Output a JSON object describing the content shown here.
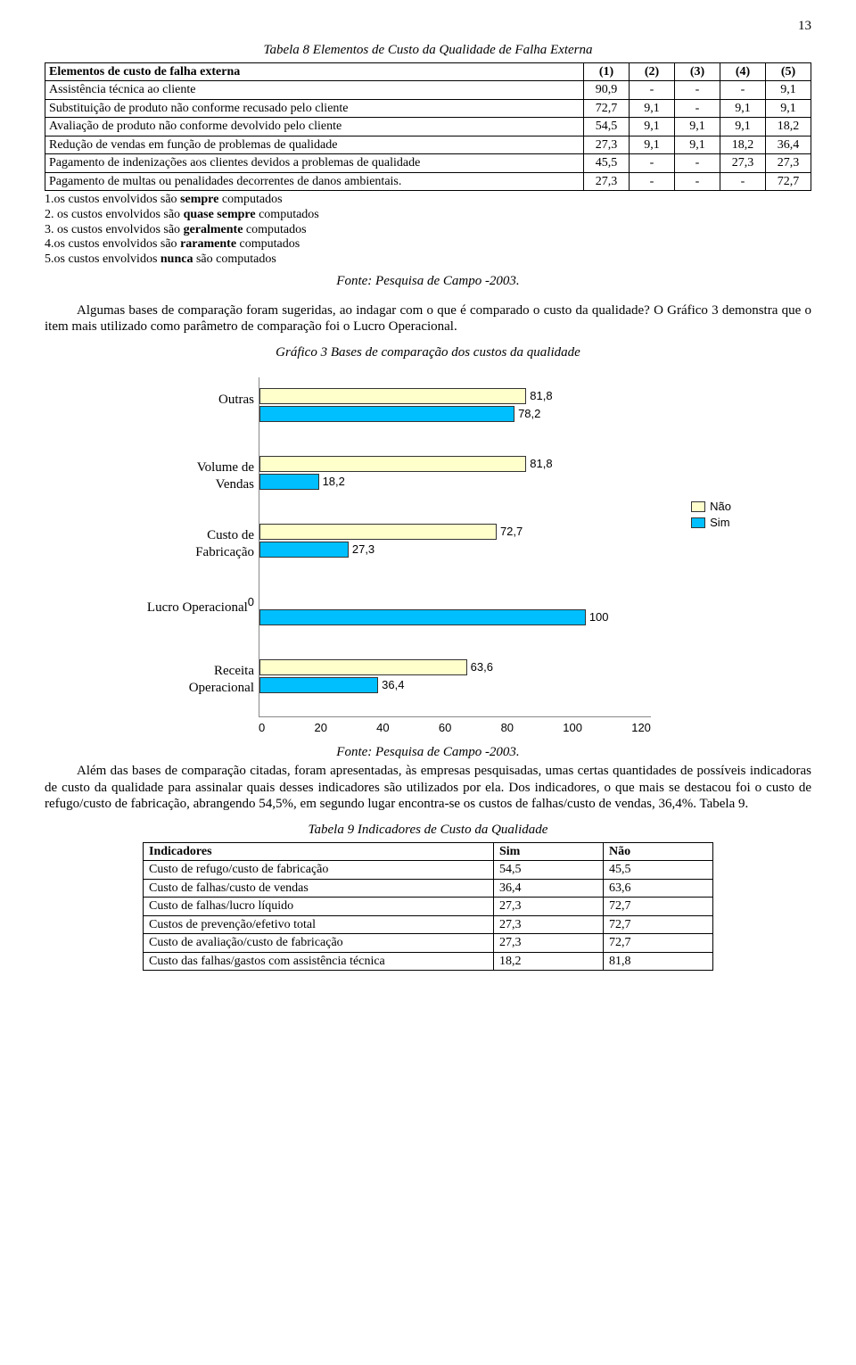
{
  "page_number": "13",
  "table8": {
    "title": "Tabela 8 Elementos de Custo da Qualidade de Falha Externa",
    "header": [
      "Elementos de custo de falha externa",
      "(1)",
      "(2)",
      "(3)",
      "(4)",
      "(5)"
    ],
    "rows": [
      [
        "Assistência técnica ao cliente",
        "90,9",
        "-",
        "-",
        "-",
        "9,1"
      ],
      [
        "Substituição de produto não  conforme recusado pelo cliente",
        "72,7",
        "9,1",
        "-",
        "9,1",
        "9,1"
      ],
      [
        "Avaliação de produto não conforme devolvido pelo cliente",
        "54,5",
        "9,1",
        "9,1",
        "9,1",
        "18,2"
      ],
      [
        "Redução de vendas em função de problemas de qualidade",
        "27,3",
        "9,1",
        "9,1",
        "18,2",
        "36,4"
      ],
      [
        "Pagamento de indenizações aos clientes devidos a problemas de qualidade",
        "45,5",
        "-",
        "-",
        "27,3",
        "27,3"
      ],
      [
        "Pagamento de multas ou penalidades decorrentes de danos ambientais.",
        "27,3",
        "-",
        "-",
        "-",
        "72,7"
      ]
    ],
    "legend": [
      "1.os custos envolvidos são <b>sempre</b> computados",
      "2. os custos envolvidos são <b>quase sempre</b> computados",
      "3. os custos envolvidos são <b>geralmente</b> computados",
      "4.os custos envolvidos são <b>raramente</b> computados",
      "5.os custos envolvidos <b>nunca</b> são computados"
    ],
    "fonte": "Fonte: Pesquisa de Campo -2003."
  },
  "body_para_1": "Algumas bases de comparação foram sugeridas, ao indagar com o que é comparado o custo da qualidade? O Gráfico 3 demonstra que o item mais utilizado como parâmetro de comparação foi o Lucro Operacional.",
  "chart": {
    "title": "Gráfico 3 Bases de comparação dos custos da qualidade",
    "type": "bar-horizontal-grouped",
    "x_min": 0,
    "x_max": 120,
    "x_step": 20,
    "color_nao": "#ffffcc",
    "color_nao_border": "#333333",
    "color_sim": "#00bfff",
    "color_sim_border": "#333333",
    "legend_nao": "Não",
    "legend_sim": "Sim",
    "categories": [
      {
        "label": "Outras",
        "nao": 81.8,
        "nao_label": "81,8",
        "sim": 78.2,
        "sim_label": "78,2"
      },
      {
        "label": "Volume de Vendas",
        "nao": 81.8,
        "nao_label": "81,8",
        "sim": 18.2,
        "sim_label": "18,2"
      },
      {
        "label": "Custo de Fabricação",
        "nao": 72.7,
        "nao_label": "72,7",
        "sim": 27.3,
        "sim_label": "27,3"
      },
      {
        "label": "Lucro Operacional",
        "nao": 0,
        "nao_label": "0",
        "sim": 100,
        "sim_label": "100"
      },
      {
        "label": "Receita Operacional",
        "nao": 63.6,
        "nao_label": "63,6",
        "sim": 36.4,
        "sim_label": "36,4"
      }
    ]
  },
  "fonte_chart": "Fonte: Pesquisa de Campo -2003.",
  "body_para_2": "Além das bases de comparação citadas, foram apresentadas, às empresas pesquisadas, umas certas quantidades de possíveis indicadoras de custo da qualidade para assinalar quais desses indicadores são utilizados por ela. Dos indicadores, o que mais se destacou foi o custo de refugo/custo de fabricação, abrangendo 54,5%, em segundo lugar encontra-se os custos de falhas/custo de vendas, 36,4%. Tabela 9.",
  "table9": {
    "title": "Tabela 9 Indicadores de Custo da Qualidade",
    "header": [
      "Indicadores",
      "Sim",
      "Não"
    ],
    "rows": [
      [
        "Custo de refugo/custo de fabricação",
        "54,5",
        "45,5"
      ],
      [
        "Custo de falhas/custo de vendas",
        "36,4",
        "63,6"
      ],
      [
        "Custo de falhas/lucro líquido",
        "27,3",
        "72,7"
      ],
      [
        "Custos de prevenção/efetivo total",
        "27,3",
        "72,7"
      ],
      [
        "Custo de avaliação/custo de fabricação",
        "27,3",
        "72,7"
      ],
      [
        "Custo das falhas/gastos com assistência técnica",
        "18,2",
        "81,8"
      ]
    ]
  }
}
